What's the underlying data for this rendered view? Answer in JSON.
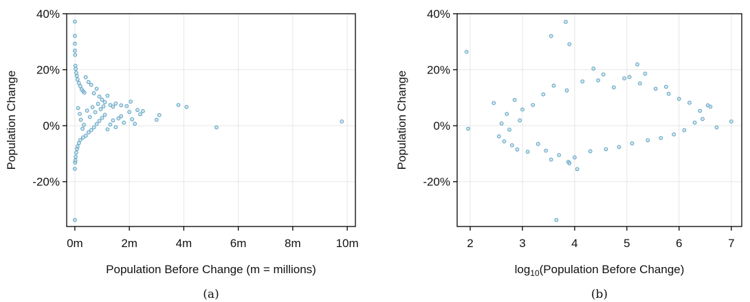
{
  "chart_data": [
    {
      "type": "scatter",
      "panel_label": "(a)",
      "ylabel": "Population Change",
      "xlabel": "Population Before Change (m = millions)",
      "xlim": [
        -0.3,
        10.3
      ],
      "ylim": [
        -36,
        40
      ],
      "xticks": [
        0,
        2,
        4,
        6,
        8,
        10
      ],
      "xtick_labels": [
        "0m",
        "2m",
        "4m",
        "6m",
        "8m",
        "10m"
      ],
      "yticks": [
        -20,
        0,
        20,
        40
      ],
      "ytick_labels": [
        "-20%",
        "0%",
        "20%",
        "40%"
      ],
      "grid": true,
      "color": "#5b9fc0",
      "points": [
        [
          0.0,
          37.2
        ],
        [
          0.0,
          32.1
        ],
        [
          0.0,
          29.3
        ],
        [
          0.0,
          26.8
        ],
        [
          0.01,
          25.3
        ],
        [
          0.02,
          21.4
        ],
        [
          0.03,
          20.3
        ],
        [
          0.05,
          18.9
        ],
        [
          0.07,
          17.8
        ],
        [
          0.1,
          16.5
        ],
        [
          0.15,
          15.2
        ],
        [
          0.2,
          14.1
        ],
        [
          0.25,
          13.0
        ],
        [
          0.3,
          12.3
        ],
        [
          0.35,
          11.8
        ],
        [
          0.4,
          17.3
        ],
        [
          0.5,
          15.6
        ],
        [
          0.6,
          14.6
        ],
        [
          0.7,
          11.6
        ],
        [
          0.8,
          13.2
        ],
        [
          0.9,
          10.4
        ],
        [
          1.0,
          9.3
        ],
        [
          1.1,
          8.4
        ],
        [
          1.2,
          10.7
        ],
        [
          1.3,
          7.4
        ],
        [
          1.4,
          6.8
        ],
        [
          1.5,
          7.9
        ],
        [
          1.7,
          7.3
        ],
        [
          1.9,
          7.0
        ],
        [
          2.0,
          4.9
        ],
        [
          2.05,
          8.6
        ],
        [
          2.3,
          5.6
        ],
        [
          2.4,
          4.1
        ],
        [
          2.5,
          5.2
        ],
        [
          3.0,
          2.1
        ],
        [
          3.1,
          3.8
        ],
        [
          3.8,
          7.4
        ],
        [
          4.1,
          6.7
        ],
        [
          5.2,
          -0.6
        ],
        [
          9.8,
          1.5
        ],
        [
          0.0,
          -33.7
        ],
        [
          0.0,
          -15.4
        ],
        [
          0.01,
          -13.2
        ],
        [
          0.02,
          -12.4
        ],
        [
          0.03,
          -11.1
        ],
        [
          0.05,
          -9.6
        ],
        [
          0.08,
          -8.3
        ],
        [
          0.1,
          -7.4
        ],
        [
          0.15,
          -6.2
        ],
        [
          0.2,
          -5.1
        ],
        [
          0.3,
          -4.2
        ],
        [
          0.4,
          -3.6
        ],
        [
          0.5,
          -2.4
        ],
        [
          0.6,
          -1.6
        ],
        [
          0.7,
          -0.6
        ],
        [
          0.8,
          0.6
        ],
        [
          0.9,
          1.7
        ],
        [
          1.0,
          2.8
        ],
        [
          1.1,
          3.9
        ],
        [
          1.2,
          -1.3
        ],
        [
          1.3,
          0.4
        ],
        [
          1.4,
          1.9
        ],
        [
          1.5,
          -0.5
        ],
        [
          1.6,
          2.6
        ],
        [
          1.7,
          3.4
        ],
        [
          1.8,
          1.1
        ],
        [
          2.1,
          2.3
        ],
        [
          2.2,
          0.7
        ],
        [
          0.12,
          6.3
        ],
        [
          0.18,
          4.2
        ],
        [
          0.22,
          2.1
        ],
        [
          0.28,
          -1.1
        ],
        [
          0.33,
          0.3
        ],
        [
          0.45,
          5.4
        ],
        [
          0.55,
          3.1
        ],
        [
          0.65,
          6.6
        ],
        [
          0.75,
          4.8
        ],
        [
          0.85,
          7.8
        ],
        [
          0.95,
          5.9
        ],
        [
          1.05,
          6.9
        ]
      ]
    },
    {
      "type": "scatter",
      "panel_label": "(b)",
      "ylabel": "Population Change",
      "xlabel_parts": [
        "log",
        "10",
        "(Population Before Change)"
      ],
      "xlim": [
        1.75,
        7.2
      ],
      "ylim": [
        -36,
        40
      ],
      "xticks": [
        2,
        3,
        4,
        5,
        6,
        7
      ],
      "xtick_labels": [
        "2",
        "3",
        "4",
        "5",
        "6",
        "7"
      ],
      "yticks": [
        -20,
        0,
        20,
        40
      ],
      "ytick_labels": [
        "-20%",
        "0%",
        "20%",
        "40%"
      ],
      "grid": true,
      "color": "#5b9fc0",
      "points": [
        [
          1.93,
          26.4
        ],
        [
          1.96,
          -1.1
        ],
        [
          2.45,
          8.1
        ],
        [
          3.55,
          32.0
        ],
        [
          3.83,
          37.1
        ],
        [
          3.9,
          29.1
        ],
        [
          3.65,
          -33.7
        ],
        [
          4.05,
          -15.5
        ],
        [
          3.88,
          -12.9
        ],
        [
          3.9,
          -13.4
        ],
        [
          3.55,
          -12.1
        ],
        [
          5.2,
          21.9
        ],
        [
          4.36,
          20.4
        ],
        [
          5.05,
          17.4
        ],
        [
          5.35,
          18.6
        ],
        [
          4.55,
          18.3
        ],
        [
          5.75,
          13.9
        ],
        [
          6.55,
          7.3
        ],
        [
          6.6,
          6.8
        ],
        [
          6.72,
          -0.6
        ],
        [
          7.0,
          1.5
        ],
        [
          2.55,
          -3.8
        ],
        [
          2.65,
          -5.6
        ],
        [
          2.7,
          4.2
        ],
        [
          2.8,
          -7.0
        ],
        [
          2.85,
          9.2
        ],
        [
          2.9,
          -8.5
        ],
        [
          3.0,
          5.8
        ],
        [
          3.1,
          -9.3
        ],
        [
          3.2,
          7.4
        ],
        [
          3.3,
          -6.5
        ],
        [
          3.4,
          11.2
        ],
        [
          3.45,
          -8.9
        ],
        [
          3.6,
          14.3
        ],
        [
          3.7,
          -10.5
        ],
        [
          3.85,
          12.6
        ],
        [
          4.0,
          -11.3
        ],
        [
          4.15,
          15.8
        ],
        [
          4.3,
          -9.1
        ],
        [
          4.45,
          16.2
        ],
        [
          4.6,
          -8.4
        ],
        [
          4.75,
          13.7
        ],
        [
          4.85,
          -7.6
        ],
        [
          4.95,
          16.9
        ],
        [
          5.1,
          -6.3
        ],
        [
          5.25,
          15.1
        ],
        [
          5.4,
          -5.2
        ],
        [
          5.55,
          13.2
        ],
        [
          5.65,
          -4.4
        ],
        [
          5.8,
          11.4
        ],
        [
          5.9,
          -3.1
        ],
        [
          6.0,
          9.6
        ],
        [
          6.1,
          -1.6
        ],
        [
          6.2,
          8.2
        ],
        [
          6.3,
          1.1
        ],
        [
          6.4,
          5.3
        ],
        [
          6.45,
          2.4
        ],
        [
          2.6,
          0.8
        ],
        [
          2.75,
          -1.4
        ],
        [
          2.95,
          1.9
        ]
      ]
    }
  ]
}
